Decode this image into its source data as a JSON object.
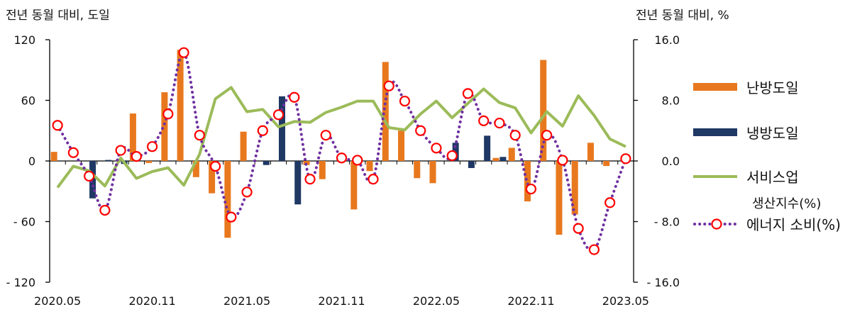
{
  "chart_data": {
    "type": "bar",
    "left_axis_title": "전년 동월 대비, 도일",
    "right_axis_title": "전년 동월 대비, %",
    "y_left": {
      "ylim": [
        -120,
        120
      ],
      "ticks": [
        120,
        60,
        0,
        -60,
        -120
      ],
      "tick_labels": [
        "120",
        "60",
        "0",
        "- 60",
        "- 120"
      ]
    },
    "y_right": {
      "ylim": [
        -16,
        16
      ],
      "ticks": [
        16,
        8,
        0,
        -8,
        -16
      ],
      "tick_labels": [
        "16.0",
        "8.0",
        "0.0",
        "- 8.0",
        "- 16.0"
      ]
    },
    "x_tick_labels": [
      {
        "index": 0,
        "label": "2020.05"
      },
      {
        "index": 6,
        "label": "2020.11"
      },
      {
        "index": 12,
        "label": "2021.05"
      },
      {
        "index": 18,
        "label": "2021.11"
      },
      {
        "index": 24,
        "label": "2022.05"
      },
      {
        "index": 30,
        "label": "2022.11"
      },
      {
        "index": 36,
        "label": "2023.05"
      }
    ],
    "periods": [
      "2020.05",
      "2020.06",
      "2020.07",
      "2020.08",
      "2020.09",
      "2020.10",
      "2020.11",
      "2020.12",
      "2021.01",
      "2021.02",
      "2021.03",
      "2021.04",
      "2021.05",
      "2021.06",
      "2021.07",
      "2021.08",
      "2021.09",
      "2021.10",
      "2021.11",
      "2021.12",
      "2022.01",
      "2022.02",
      "2022.03",
      "2022.04",
      "2022.05",
      "2022.06",
      "2022.07",
      "2022.08",
      "2022.09",
      "2022.10",
      "2022.11",
      "2022.12",
      "2023.01",
      "2023.02",
      "2023.03",
      "2023.04",
      "2023.05"
    ],
    "series": [
      {
        "name": "난방도일",
        "type": "bar",
        "axis": "left",
        "color": "#E8781E",
        "values": [
          9,
          0,
          0,
          0,
          0,
          47,
          -2,
          68,
          110,
          -16,
          -32,
          -76,
          29,
          0,
          0,
          0,
          -4,
          -18,
          0,
          -48,
          -10,
          98,
          30,
          -17,
          -22,
          0,
          0,
          0,
          3,
          13,
          -40,
          100,
          -73,
          -53,
          18,
          -5,
          0
        ]
      },
      {
        "name": "냉방도일",
        "type": "bar",
        "axis": "left",
        "color": "#1F3864",
        "values": [
          0,
          0,
          -37,
          1,
          -3,
          0,
          0,
          0,
          0,
          0,
          0,
          0,
          0,
          -4,
          64,
          -43,
          0,
          0,
          0,
          0,
          0,
          0,
          0,
          0,
          0,
          18,
          -7,
          25,
          4,
          0,
          0,
          0,
          0,
          0,
          0,
          0,
          0
        ]
      },
      {
        "name": "서비스업 생산지수(%)",
        "type": "line",
        "axis": "right",
        "color": "#9BBB59",
        "values": [
          -3.5,
          -0.7,
          -1.3,
          -3.3,
          0.4,
          -2.3,
          -1.4,
          -0.9,
          -3.2,
          0.9,
          8.2,
          9.7,
          6.5,
          6.8,
          4.5,
          5.2,
          5.1,
          6.4,
          7.1,
          7.9,
          7.9,
          4.4,
          4.1,
          6.2,
          7.9,
          5.7,
          7.6,
          9.5,
          7.7,
          7.0,
          3.7,
          6.5,
          4.6,
          8.6,
          6.0,
          2.9,
          1.9
        ]
      },
      {
        "name": "에너지 소비(%)",
        "type": "line_markers",
        "axis": "right",
        "color": "#7030A0",
        "marker_color": "#FF0000",
        "values": [
          4.7,
          1.1,
          -2.0,
          -6.5,
          1.4,
          0.6,
          1.9,
          6.2,
          14.3,
          3.4,
          -0.7,
          -7.4,
          -4.1,
          4.0,
          6.1,
          8.4,
          -2.4,
          3.4,
          0.4,
          0.1,
          -2.4,
          9.9,
          7.9,
          4.0,
          1.7,
          0.7,
          8.9,
          5.3,
          5.0,
          3.4,
          -3.7,
          3.4,
          0.1,
          -8.9,
          -11.7,
          -5.5,
          0.3
        ]
      }
    ],
    "legend": [
      {
        "label_lines": [
          "난방도일"
        ],
        "kind": "bar",
        "color": "#E8781E"
      },
      {
        "label_lines": [
          "냉방도일"
        ],
        "kind": "bar",
        "color": "#1F3864"
      },
      {
        "label_lines": [
          "서비스업",
          "생산지수(%)"
        ],
        "kind": "line",
        "color": "#9BBB59"
      },
      {
        "label_lines": [
          "에너지 소비(%)"
        ],
        "kind": "line_markers",
        "color": "#7030A0",
        "marker_color": "#FF0000"
      }
    ],
    "legend_placement": "right",
    "grid": false
  }
}
